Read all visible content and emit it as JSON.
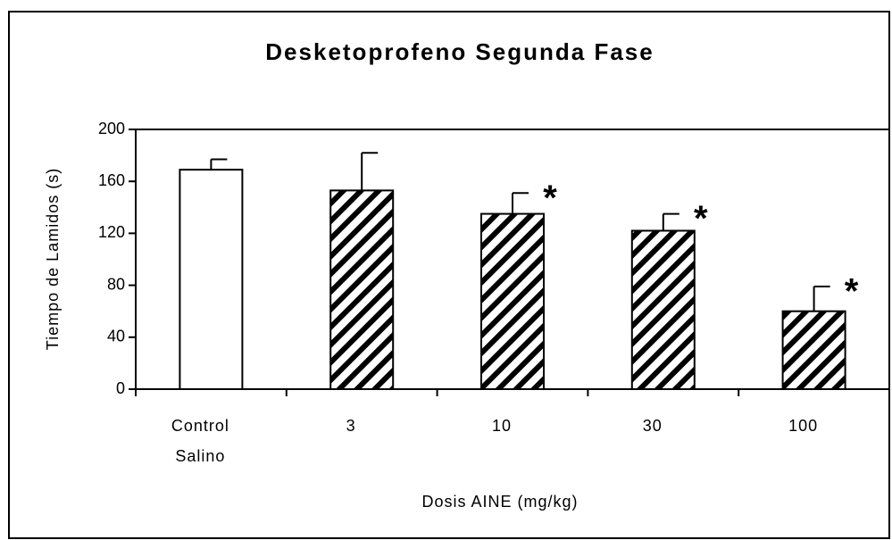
{
  "chart_data": {
    "type": "bar",
    "title": "Desketoprofeno Segunda Fase",
    "x_label": "Dosis AINE (mg/kg)",
    "y_label": "Tiempo de Lamidos (s)",
    "categories": [
      "Control Salino",
      "3",
      "10",
      "30",
      "100"
    ],
    "values": [
      169,
      153,
      135,
      122,
      60
    ],
    "errors": [
      8,
      29,
      16,
      13,
      19
    ],
    "significance": [
      null,
      null,
      "*",
      "*",
      "*"
    ],
    "hatch": [
      false,
      true,
      true,
      true,
      true
    ],
    "color": "#000000",
    "ylim": [
      0,
      200
    ],
    "yticks": [
      0,
      40,
      80,
      120,
      160,
      200
    ]
  }
}
